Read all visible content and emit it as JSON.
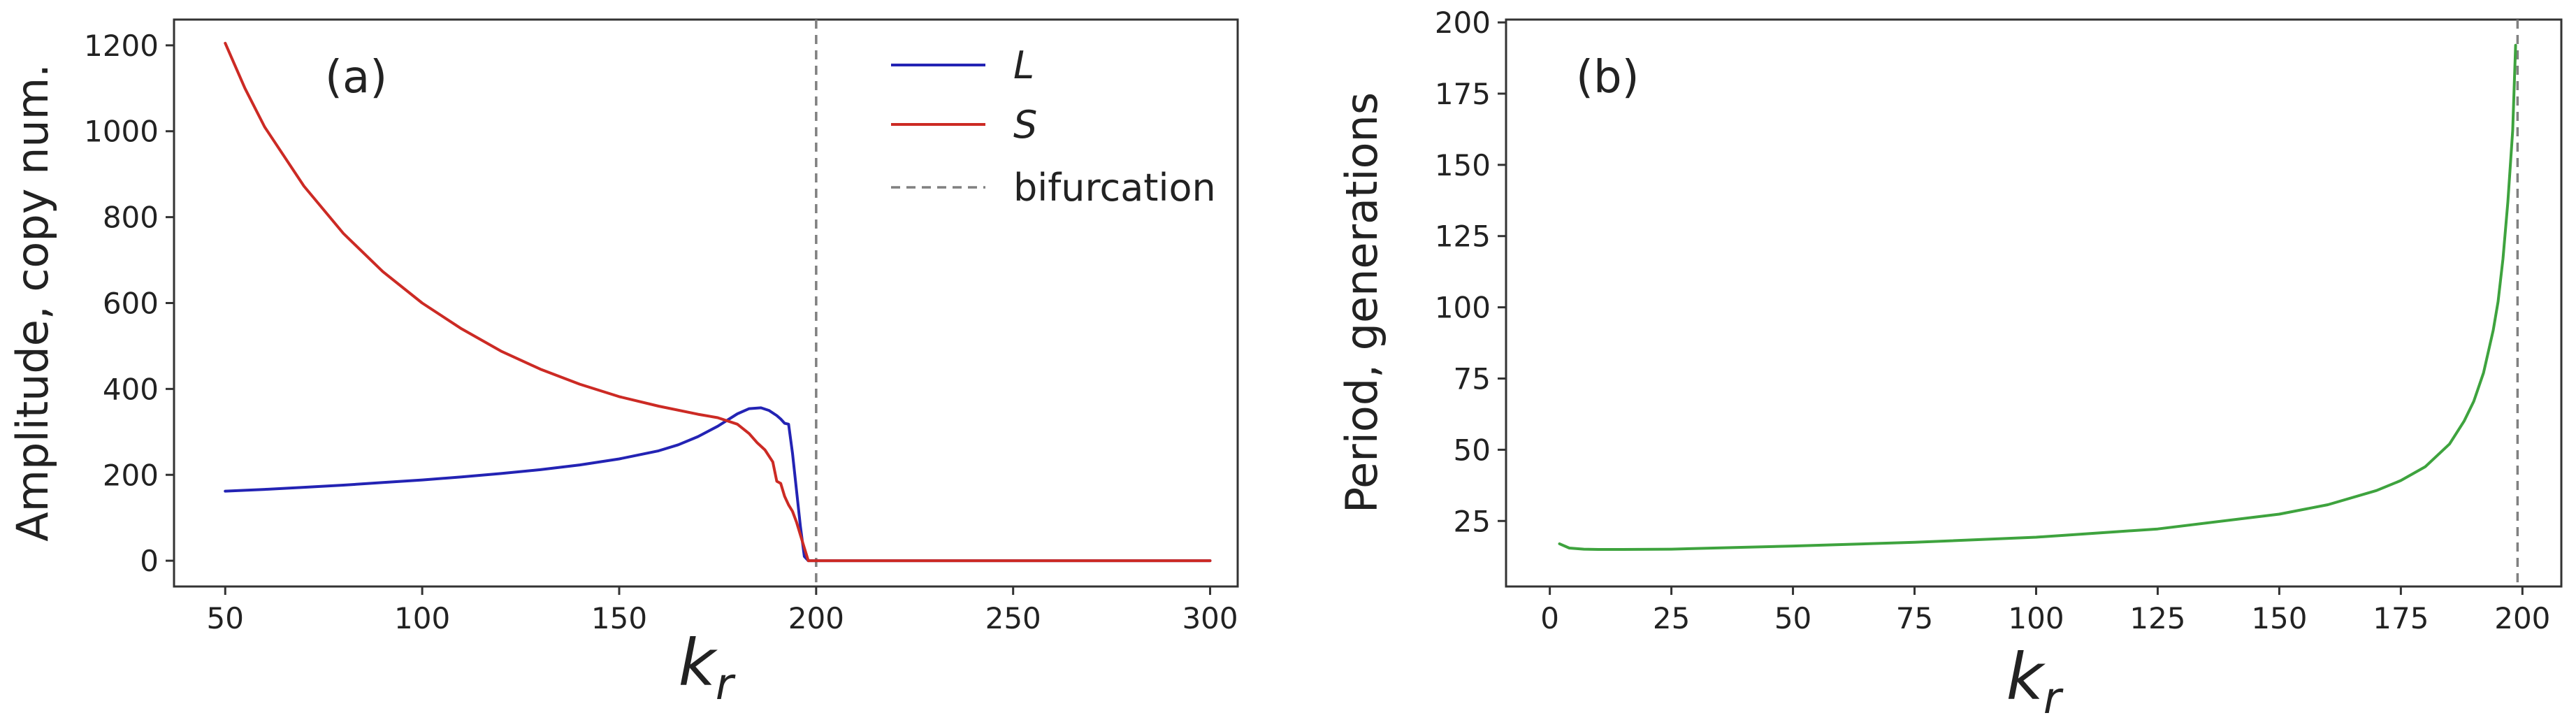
{
  "chart_data": [
    {
      "type": "line",
      "panel_label": "(a)",
      "xlabel": "k",
      "xlabel_subscript": "r",
      "ylabel": "Amplitude, copy num.",
      "xlim": [
        37,
        307
      ],
      "ylim": [
        -60,
        1260
      ],
      "xticks": [
        50,
        100,
        150,
        200,
        250,
        300
      ],
      "yticks": [
        0,
        200,
        400,
        600,
        800,
        1000,
        1200
      ],
      "grid": false,
      "legend_position": "top-right",
      "vline": {
        "x": 200,
        "label": "bifurcation",
        "color": "#808080",
        "style": "dashed"
      },
      "series": [
        {
          "name": "L",
          "color": "#2323b4",
          "x": [
            50,
            60,
            70,
            80,
            90,
            100,
            110,
            120,
            130,
            140,
            150,
            160,
            165,
            170,
            175,
            180,
            183,
            186,
            188,
            190,
            191,
            192,
            193,
            194,
            196,
            197,
            198,
            200,
            220,
            250,
            300
          ],
          "y": [
            162,
            166,
            171,
            176,
            182,
            188,
            195,
            203,
            212,
            223,
            237,
            256,
            270,
            289,
            313,
            342,
            354,
            356,
            350,
            338,
            330,
            320,
            318,
            250,
            80,
            10,
            0,
            0,
            0,
            0,
            0
          ]
        },
        {
          "name": "S",
          "color": "#cc2a24",
          "x": [
            50,
            55,
            60,
            70,
            80,
            90,
            100,
            110,
            120,
            130,
            140,
            150,
            160,
            170,
            175,
            180,
            183,
            185,
            187,
            189,
            190,
            191,
            192,
            193,
            194,
            195,
            196,
            197,
            198,
            200,
            220,
            250,
            300
          ],
          "y": [
            1205,
            1100,
            1010,
            872,
            762,
            673,
            600,
            540,
            488,
            446,
            411,
            382,
            360,
            341,
            333,
            318,
            296,
            275,
            258,
            230,
            185,
            180,
            150,
            130,
            115,
            90,
            60,
            30,
            0,
            0,
            0,
            0,
            0
          ]
        }
      ]
    },
    {
      "type": "line",
      "panel_label": "(b)",
      "xlabel": "k",
      "xlabel_subscript": "r",
      "ylabel": "Period, generations",
      "xlim": [
        -9,
        208
      ],
      "ylim": [
        2,
        201
      ],
      "xticks": [
        0,
        25,
        50,
        75,
        100,
        125,
        150,
        175,
        200
      ],
      "yticks": [
        25,
        50,
        75,
        100,
        125,
        150,
        175,
        200
      ],
      "grid": false,
      "vline": {
        "x": 199,
        "color": "#808080",
        "style": "dashed"
      },
      "series": [
        {
          "color": "#3ea33e",
          "x": [
            2,
            4,
            7,
            10,
            15,
            25,
            50,
            75,
            100,
            125,
            150,
            160,
            170,
            175,
            180,
            185,
            188,
            190,
            192,
            194,
            195,
            196,
            197,
            198,
            198.6
          ],
          "y": [
            17,
            15.5,
            15.1,
            15,
            15,
            15.1,
            16.2,
            17.5,
            19.3,
            22.2,
            27.4,
            30.7,
            35.7,
            39.2,
            44,
            52,
            60,
            67,
            77,
            92,
            102,
            117,
            137,
            162,
            192
          ]
        }
      ]
    }
  ]
}
